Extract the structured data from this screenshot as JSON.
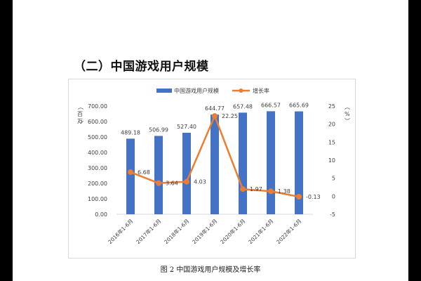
{
  "section_title": "（二）中国游戏用户规模",
  "caption": "图 2  中国游戏用户规模及增长率",
  "colors": {
    "bar": "#4472c4",
    "line": "#ed7d31",
    "text": "#404040",
    "axis": "#d9d9d9"
  },
  "chart_data": {
    "type": "bar",
    "categories": [
      "2016年1-6月",
      "2017年1-6月",
      "2018年1-6月",
      "2019年1-6月",
      "2020年1-6月",
      "2021年1-6月",
      "2022年1-6月"
    ],
    "series": [
      {
        "name": "中国游戏用户规模",
        "type": "bar",
        "axis": "left",
        "values": [
          489.18,
          506.99,
          527.4,
          644.77,
          657.48,
          666.57,
          665.69
        ],
        "labels": [
          "489.18",
          "506.99",
          "527.40",
          "644.77",
          "657.48",
          "666.57",
          "665.69"
        ]
      },
      {
        "name": "增长率",
        "type": "line",
        "axis": "right",
        "values": [
          6.68,
          3.64,
          4.03,
          22.25,
          1.97,
          1.38,
          -0.13
        ],
        "labels": [
          "6.68",
          "3.64",
          "4.03",
          "22.25",
          "1.97",
          "1.38",
          "-0.13"
        ]
      }
    ],
    "ylabel_left": "百万",
    "ylabel_right": "%",
    "ylim_left": [
      0,
      700
    ],
    "ylim_right": [
      -5,
      25
    ],
    "left_ticks": [
      "0.00",
      "100.00",
      "200.00",
      "300.00",
      "400.00",
      "500.00",
      "600.00",
      "700.00"
    ],
    "right_ticks": [
      "-5",
      "0",
      "5",
      "10",
      "15",
      "20",
      "25"
    ],
    "legend": "top"
  }
}
